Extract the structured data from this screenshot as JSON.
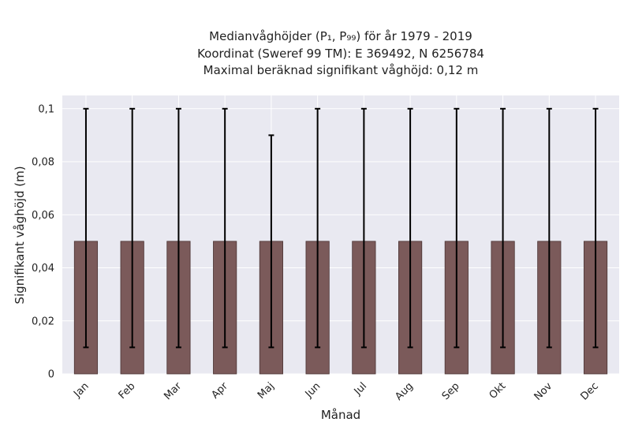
{
  "chart_data": {
    "type": "bar",
    "title_lines": [
      "Medianvåghöjder (P₁, P₉₉) för år 1979 - 2019",
      "Koordinat (Sweref 99 TM): E 369492, N 6256784",
      "Maximal beräknad signifikant våghöjd: 0,12 m"
    ],
    "xlabel": "Månad",
    "ylabel": "Signifikant våghöjd (m)",
    "categories": [
      "Jan",
      "Feb",
      "Mar",
      "Apr",
      "Maj",
      "Jun",
      "Jul",
      "Aug",
      "Sep",
      "Okt",
      "Nov",
      "Dec"
    ],
    "values": [
      0.05,
      0.05,
      0.05,
      0.05,
      0.05,
      0.05,
      0.05,
      0.05,
      0.05,
      0.05,
      0.05,
      0.05
    ],
    "error_low": [
      0.01,
      0.01,
      0.01,
      0.01,
      0.01,
      0.01,
      0.01,
      0.01,
      0.01,
      0.01,
      0.01,
      0.01
    ],
    "error_high": [
      0.1,
      0.1,
      0.1,
      0.1,
      0.09,
      0.1,
      0.1,
      0.1,
      0.1,
      0.1,
      0.1,
      0.1
    ],
    "ylim": [
      0,
      0.105
    ],
    "yticks": [
      0,
      0.02,
      0.04,
      0.06,
      0.08,
      0.1
    ],
    "ytick_labels": [
      "0",
      "0,02",
      "0,04",
      "0,06",
      "0,08",
      "0,1"
    ],
    "grid": true,
    "colors": {
      "bar": "#7b5a5a",
      "bar_edge": "#4a3434",
      "errorbar": "#000000",
      "plot_background": "#e9e9f1",
      "grid": "#ffffff"
    }
  }
}
